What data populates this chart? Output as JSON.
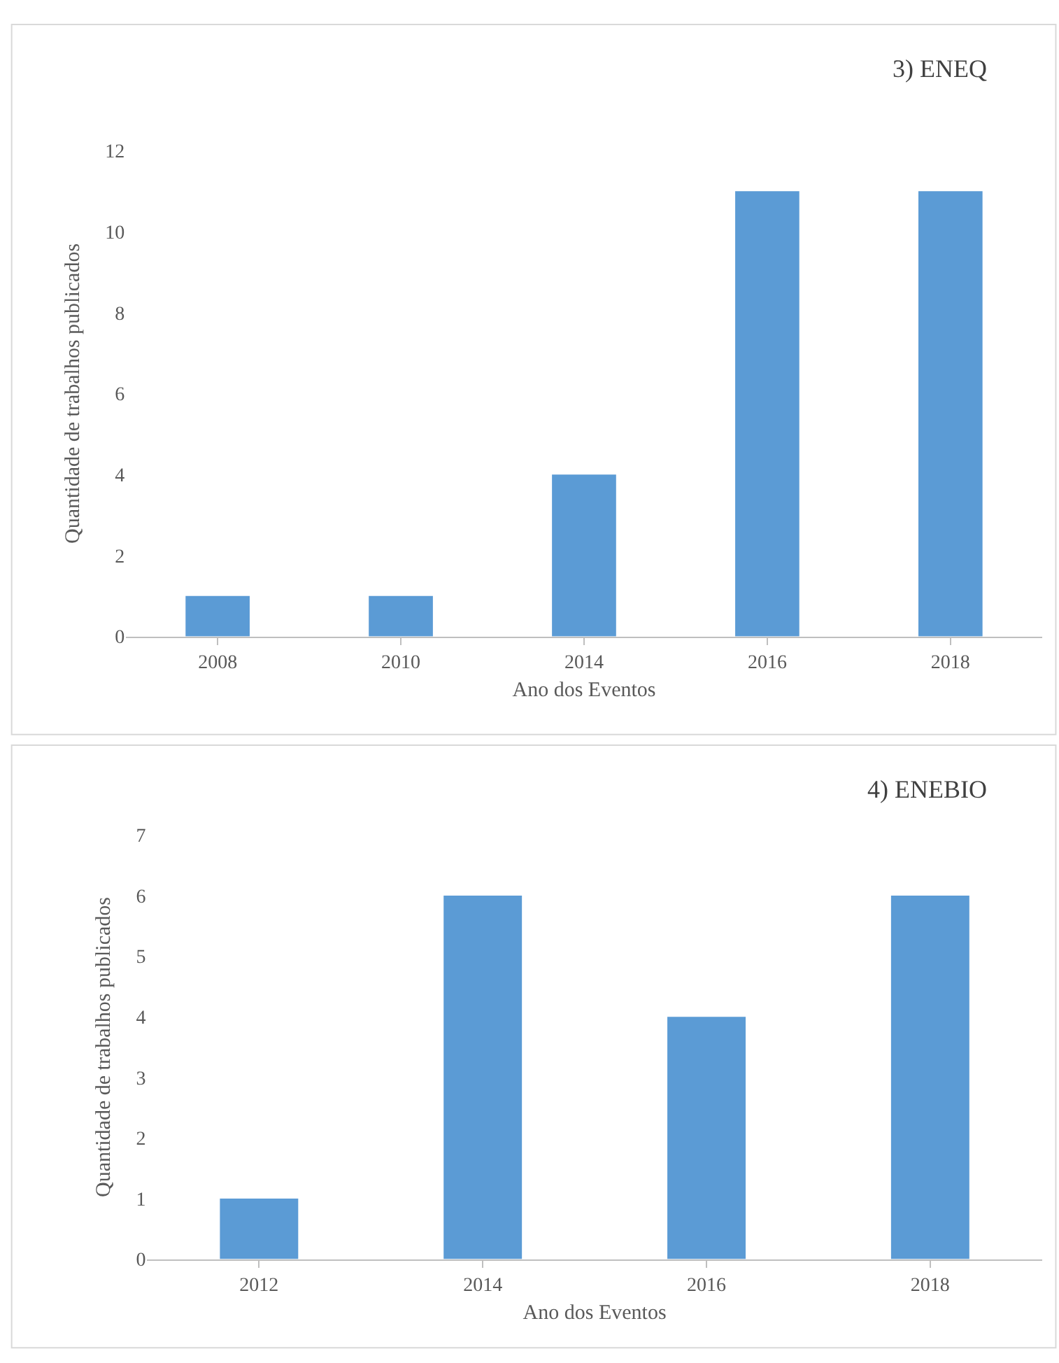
{
  "chart_data": [
    {
      "type": "bar",
      "title": "3) ENEQ",
      "xlabel": "Ano dos Eventos",
      "ylabel": "Quantidade de trabalhos publicados",
      "categories": [
        "2008",
        "2010",
        "2014",
        "2016",
        "2018"
      ],
      "values": [
        1,
        1,
        4,
        11,
        11
      ],
      "color": "#5b9bd5",
      "ylim": [
        0,
        12
      ],
      "yticks": [
        0,
        2,
        4,
        6,
        8,
        10,
        12
      ],
      "grid": false
    },
    {
      "type": "bar",
      "title": "4) ENEBIO",
      "xlabel": "Ano dos Eventos",
      "ylabel": "Quantidade de trabalhos publicados",
      "categories": [
        "2012",
        "2014",
        "2016",
        "2018"
      ],
      "values": [
        1,
        6,
        4,
        6
      ],
      "color": "#5b9bd5",
      "ylim": [
        0,
        7
      ],
      "yticks": [
        0,
        1,
        2,
        3,
        4,
        5,
        6,
        7
      ],
      "grid": false
    }
  ]
}
